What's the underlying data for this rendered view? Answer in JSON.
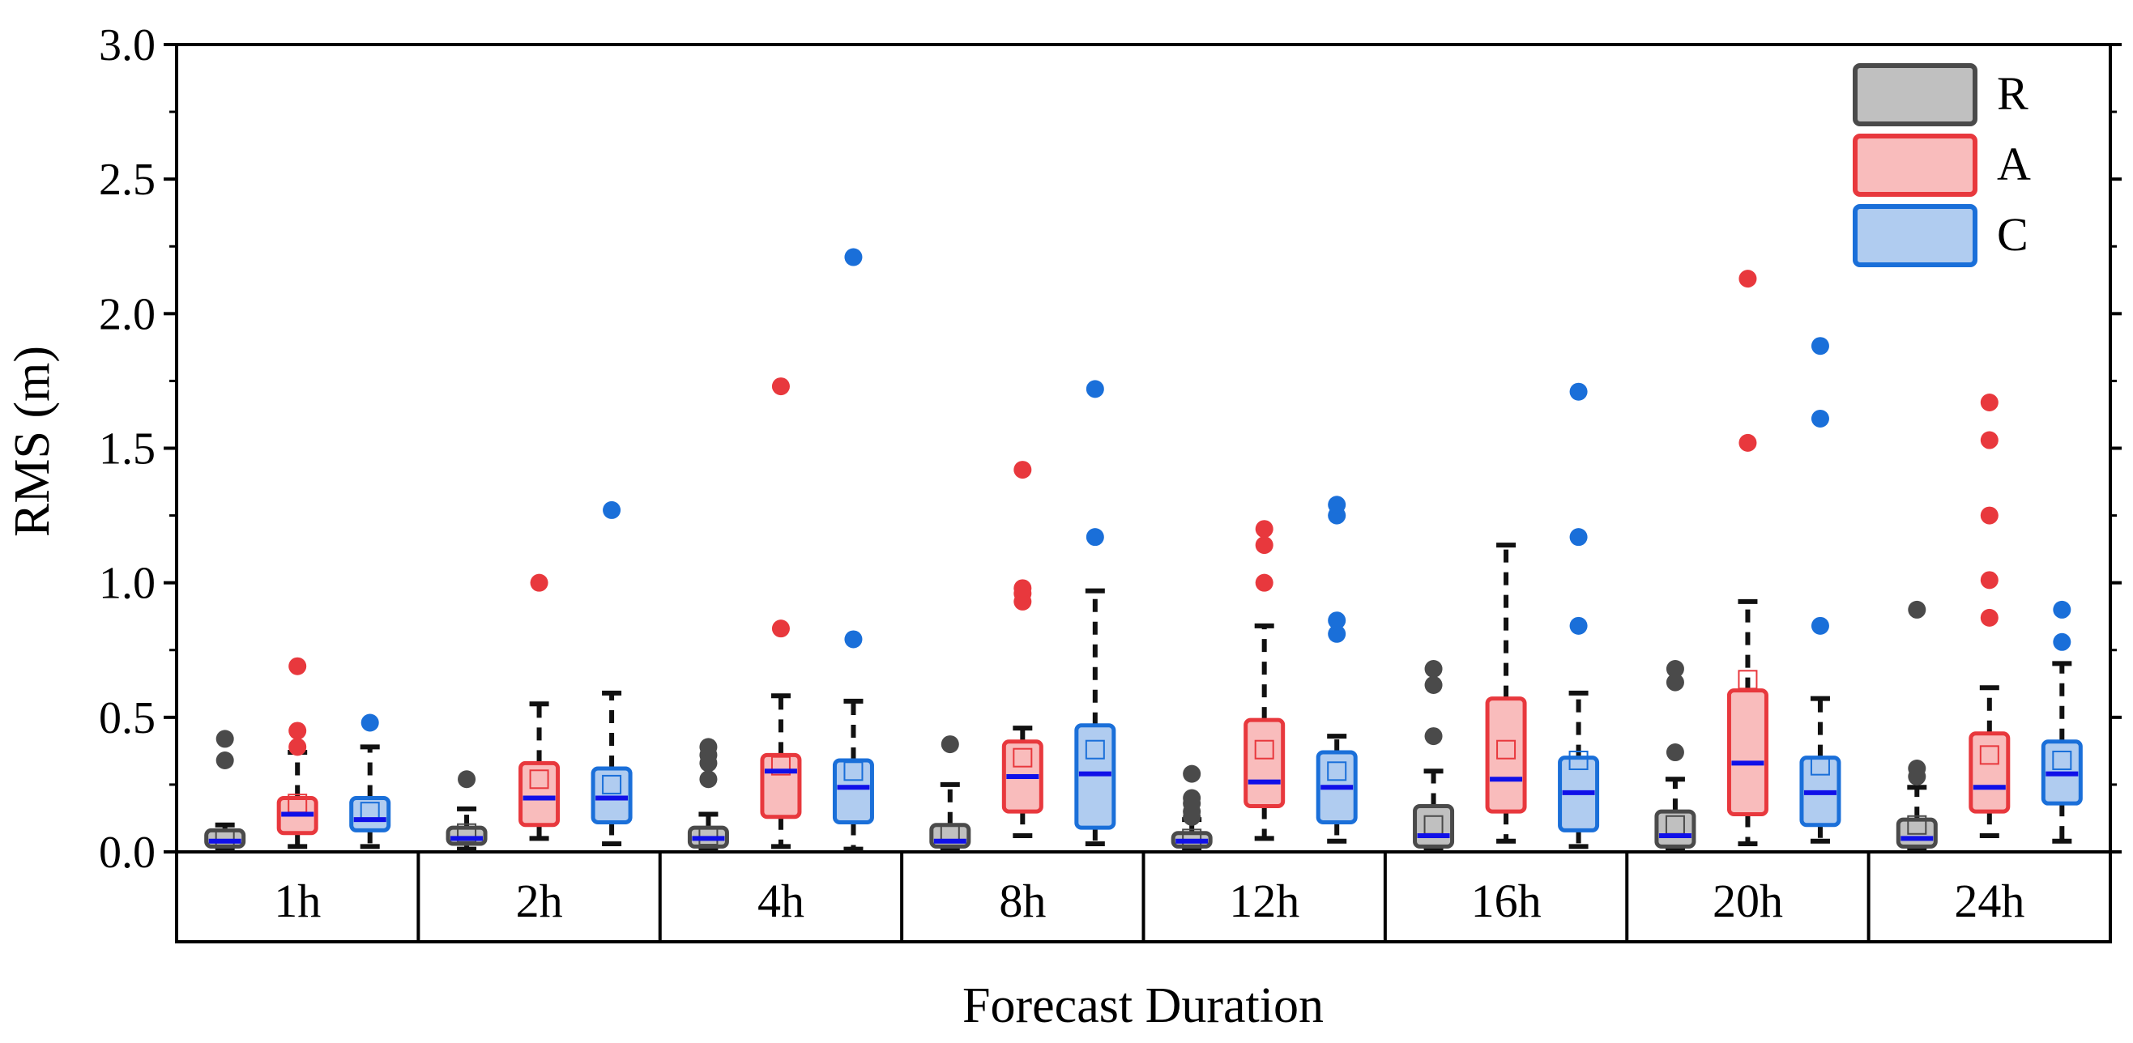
{
  "chart_data": {
    "type": "box",
    "title": "",
    "xlabel": "Forecast Duration",
    "ylabel": "RMS (m)",
    "ylim": [
      0,
      3.0
    ],
    "yticks": [
      "0.0",
      "0.5",
      "1.0",
      "1.5",
      "2.0",
      "2.5",
      "3.0"
    ],
    "categories": [
      "1h",
      "2h",
      "4h",
      "8h",
      "12h",
      "16h",
      "20h",
      "24h"
    ],
    "legend_position": "top-right",
    "series": [
      {
        "name": "R",
        "fill": "#c0c0c0",
        "stroke": "#4a4a4a",
        "boxes": [
          {
            "min": 0.01,
            "q1": 0.02,
            "median": 0.04,
            "mean": 0.05,
            "q3": 0.08,
            "max": 0.1,
            "outliers": [
              0.34,
              0.42
            ]
          },
          {
            "min": 0.01,
            "q1": 0.03,
            "median": 0.05,
            "mean": 0.07,
            "q3": 0.09,
            "max": 0.16,
            "outliers": [
              0.27
            ]
          },
          {
            "min": 0.01,
            "q1": 0.02,
            "median": 0.05,
            "mean": 0.06,
            "q3": 0.09,
            "max": 0.14,
            "outliers": [
              0.27,
              0.33,
              0.36,
              0.39
            ]
          },
          {
            "min": 0.01,
            "q1": 0.02,
            "median": 0.04,
            "mean": 0.07,
            "q3": 0.1,
            "max": 0.25,
            "outliers": [
              0.4
            ]
          },
          {
            "min": 0.01,
            "q1": 0.02,
            "median": 0.04,
            "mean": 0.05,
            "q3": 0.07,
            "max": 0.12,
            "outliers": [
              0.13,
              0.15,
              0.18,
              0.2,
              0.29
            ]
          },
          {
            "min": 0.01,
            "q1": 0.02,
            "median": 0.06,
            "mean": 0.1,
            "q3": 0.17,
            "max": 0.3,
            "outliers": [
              0.43,
              0.62,
              0.68
            ]
          },
          {
            "min": 0.01,
            "q1": 0.02,
            "median": 0.06,
            "mean": 0.1,
            "q3": 0.15,
            "max": 0.27,
            "outliers": [
              0.37,
              0.63,
              0.68
            ]
          },
          {
            "min": 0.01,
            "q1": 0.02,
            "median": 0.05,
            "mean": 0.1,
            "q3": 0.12,
            "max": 0.24,
            "outliers": [
              0.28,
              0.31,
              0.9
            ]
          }
        ]
      },
      {
        "name": "A",
        "fill": "#f9bcbc",
        "stroke": "#e8383d",
        "boxes": [
          {
            "min": 0.02,
            "q1": 0.07,
            "median": 0.14,
            "mean": 0.18,
            "q3": 0.2,
            "max": 0.37,
            "outliers": [
              0.39,
              0.45,
              0.69
            ]
          },
          {
            "min": 0.05,
            "q1": 0.1,
            "median": 0.2,
            "mean": 0.27,
            "q3": 0.33,
            "max": 0.55,
            "outliers": [
              1.0
            ]
          },
          {
            "min": 0.02,
            "q1": 0.13,
            "median": 0.3,
            "mean": 0.32,
            "q3": 0.36,
            "max": 0.58,
            "outliers": [
              0.83,
              1.73
            ]
          },
          {
            "min": 0.06,
            "q1": 0.15,
            "median": 0.28,
            "mean": 0.35,
            "q3": 0.41,
            "max": 0.46,
            "outliers": [
              0.93,
              0.96,
              0.98,
              1.42
            ]
          },
          {
            "min": 0.05,
            "q1": 0.17,
            "median": 0.26,
            "mean": 0.38,
            "q3": 0.49,
            "max": 0.84,
            "outliers": [
              1.0,
              1.14,
              1.2
            ]
          },
          {
            "min": 0.04,
            "q1": 0.15,
            "median": 0.27,
            "mean": 0.38,
            "q3": 0.57,
            "max": 1.14,
            "outliers": []
          },
          {
            "min": 0.03,
            "q1": 0.14,
            "median": 0.33,
            "mean": 0.64,
            "q3": 0.6,
            "max": 0.93,
            "outliers": [
              1.52,
              2.13
            ]
          },
          {
            "min": 0.06,
            "q1": 0.15,
            "median": 0.24,
            "mean": 0.36,
            "q3": 0.44,
            "max": 0.61,
            "outliers": [
              0.87,
              1.01,
              1.25,
              1.53,
              1.67
            ]
          }
        ]
      },
      {
        "name": "C",
        "fill": "#b0ccf0",
        "stroke": "#1a6fd9",
        "boxes": [
          {
            "min": 0.02,
            "q1": 0.08,
            "median": 0.12,
            "mean": 0.15,
            "q3": 0.2,
            "max": 0.39,
            "outliers": [
              0.48
            ]
          },
          {
            "min": 0.03,
            "q1": 0.11,
            "median": 0.2,
            "mean": 0.25,
            "q3": 0.31,
            "max": 0.59,
            "outliers": [
              1.27
            ]
          },
          {
            "min": 0.01,
            "q1": 0.11,
            "median": 0.24,
            "mean": 0.3,
            "q3": 0.34,
            "max": 0.56,
            "outliers": [
              0.79,
              2.21
            ]
          },
          {
            "min": 0.03,
            "q1": 0.09,
            "median": 0.29,
            "mean": 0.38,
            "q3": 0.47,
            "max": 0.97,
            "outliers": [
              1.17,
              1.72
            ]
          },
          {
            "min": 0.04,
            "q1": 0.11,
            "median": 0.24,
            "mean": 0.3,
            "q3": 0.37,
            "max": 0.43,
            "outliers": [
              0.81,
              0.86,
              1.25,
              1.29
            ]
          },
          {
            "min": 0.02,
            "q1": 0.08,
            "median": 0.22,
            "mean": 0.34,
            "q3": 0.35,
            "max": 0.59,
            "outliers": [
              0.84,
              1.17,
              1.71
            ]
          },
          {
            "min": 0.04,
            "q1": 0.1,
            "median": 0.22,
            "mean": 0.32,
            "q3": 0.35,
            "max": 0.57,
            "outliers": [
              0.84,
              1.61,
              1.88
            ]
          },
          {
            "min": 0.04,
            "q1": 0.18,
            "median": 0.29,
            "mean": 0.34,
            "q3": 0.41,
            "max": 0.7,
            "outliers": [
              0.78,
              0.9
            ]
          }
        ]
      }
    ],
    "median_line_color": "#1010e8"
  }
}
